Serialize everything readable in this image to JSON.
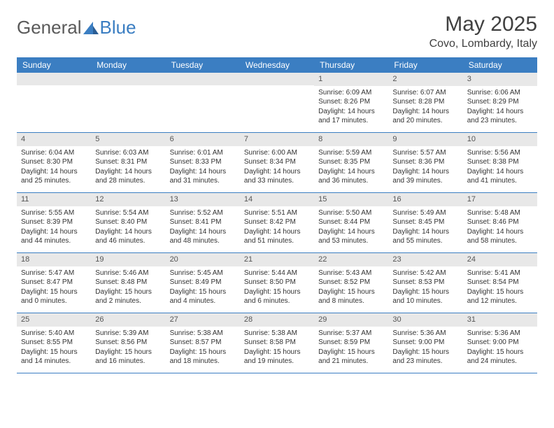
{
  "brand": {
    "name_part1": "General",
    "name_part2": "Blue"
  },
  "title": "May 2025",
  "location": "Covo, Lombardy, Italy",
  "colors": {
    "header_bg": "#3b7ec2",
    "header_text": "#ffffff",
    "daynum_bg": "#e8e8e8",
    "body_text": "#333333",
    "title_text": "#404040",
    "grid_border": "#3b7ec2"
  },
  "fonts": {
    "title_size": 30,
    "location_size": 16,
    "weekday_size": 12,
    "cell_size": 10
  },
  "weekdays": [
    "Sunday",
    "Monday",
    "Tuesday",
    "Wednesday",
    "Thursday",
    "Friday",
    "Saturday"
  ],
  "layout": {
    "columns": 7,
    "rows": 5,
    "leading_blanks": 4
  },
  "days": [
    {
      "n": "1",
      "sunrise": "Sunrise: 6:09 AM",
      "sunset": "Sunset: 8:26 PM",
      "daylight": "Daylight: 14 hours and 17 minutes."
    },
    {
      "n": "2",
      "sunrise": "Sunrise: 6:07 AM",
      "sunset": "Sunset: 8:28 PM",
      "daylight": "Daylight: 14 hours and 20 minutes."
    },
    {
      "n": "3",
      "sunrise": "Sunrise: 6:06 AM",
      "sunset": "Sunset: 8:29 PM",
      "daylight": "Daylight: 14 hours and 23 minutes."
    },
    {
      "n": "4",
      "sunrise": "Sunrise: 6:04 AM",
      "sunset": "Sunset: 8:30 PM",
      "daylight": "Daylight: 14 hours and 25 minutes."
    },
    {
      "n": "5",
      "sunrise": "Sunrise: 6:03 AM",
      "sunset": "Sunset: 8:31 PM",
      "daylight": "Daylight: 14 hours and 28 minutes."
    },
    {
      "n": "6",
      "sunrise": "Sunrise: 6:01 AM",
      "sunset": "Sunset: 8:33 PM",
      "daylight": "Daylight: 14 hours and 31 minutes."
    },
    {
      "n": "7",
      "sunrise": "Sunrise: 6:00 AM",
      "sunset": "Sunset: 8:34 PM",
      "daylight": "Daylight: 14 hours and 33 minutes."
    },
    {
      "n": "8",
      "sunrise": "Sunrise: 5:59 AM",
      "sunset": "Sunset: 8:35 PM",
      "daylight": "Daylight: 14 hours and 36 minutes."
    },
    {
      "n": "9",
      "sunrise": "Sunrise: 5:57 AM",
      "sunset": "Sunset: 8:36 PM",
      "daylight": "Daylight: 14 hours and 39 minutes."
    },
    {
      "n": "10",
      "sunrise": "Sunrise: 5:56 AM",
      "sunset": "Sunset: 8:38 PM",
      "daylight": "Daylight: 14 hours and 41 minutes."
    },
    {
      "n": "11",
      "sunrise": "Sunrise: 5:55 AM",
      "sunset": "Sunset: 8:39 PM",
      "daylight": "Daylight: 14 hours and 44 minutes."
    },
    {
      "n": "12",
      "sunrise": "Sunrise: 5:54 AM",
      "sunset": "Sunset: 8:40 PM",
      "daylight": "Daylight: 14 hours and 46 minutes."
    },
    {
      "n": "13",
      "sunrise": "Sunrise: 5:52 AM",
      "sunset": "Sunset: 8:41 PM",
      "daylight": "Daylight: 14 hours and 48 minutes."
    },
    {
      "n": "14",
      "sunrise": "Sunrise: 5:51 AM",
      "sunset": "Sunset: 8:42 PM",
      "daylight": "Daylight: 14 hours and 51 minutes."
    },
    {
      "n": "15",
      "sunrise": "Sunrise: 5:50 AM",
      "sunset": "Sunset: 8:44 PM",
      "daylight": "Daylight: 14 hours and 53 minutes."
    },
    {
      "n": "16",
      "sunrise": "Sunrise: 5:49 AM",
      "sunset": "Sunset: 8:45 PM",
      "daylight": "Daylight: 14 hours and 55 minutes."
    },
    {
      "n": "17",
      "sunrise": "Sunrise: 5:48 AM",
      "sunset": "Sunset: 8:46 PM",
      "daylight": "Daylight: 14 hours and 58 minutes."
    },
    {
      "n": "18",
      "sunrise": "Sunrise: 5:47 AM",
      "sunset": "Sunset: 8:47 PM",
      "daylight": "Daylight: 15 hours and 0 minutes."
    },
    {
      "n": "19",
      "sunrise": "Sunrise: 5:46 AM",
      "sunset": "Sunset: 8:48 PM",
      "daylight": "Daylight: 15 hours and 2 minutes."
    },
    {
      "n": "20",
      "sunrise": "Sunrise: 5:45 AM",
      "sunset": "Sunset: 8:49 PM",
      "daylight": "Daylight: 15 hours and 4 minutes."
    },
    {
      "n": "21",
      "sunrise": "Sunrise: 5:44 AM",
      "sunset": "Sunset: 8:50 PM",
      "daylight": "Daylight: 15 hours and 6 minutes."
    },
    {
      "n": "22",
      "sunrise": "Sunrise: 5:43 AM",
      "sunset": "Sunset: 8:52 PM",
      "daylight": "Daylight: 15 hours and 8 minutes."
    },
    {
      "n": "23",
      "sunrise": "Sunrise: 5:42 AM",
      "sunset": "Sunset: 8:53 PM",
      "daylight": "Daylight: 15 hours and 10 minutes."
    },
    {
      "n": "24",
      "sunrise": "Sunrise: 5:41 AM",
      "sunset": "Sunset: 8:54 PM",
      "daylight": "Daylight: 15 hours and 12 minutes."
    },
    {
      "n": "25",
      "sunrise": "Sunrise: 5:40 AM",
      "sunset": "Sunset: 8:55 PM",
      "daylight": "Daylight: 15 hours and 14 minutes."
    },
    {
      "n": "26",
      "sunrise": "Sunrise: 5:39 AM",
      "sunset": "Sunset: 8:56 PM",
      "daylight": "Daylight: 15 hours and 16 minutes."
    },
    {
      "n": "27",
      "sunrise": "Sunrise: 5:38 AM",
      "sunset": "Sunset: 8:57 PM",
      "daylight": "Daylight: 15 hours and 18 minutes."
    },
    {
      "n": "28",
      "sunrise": "Sunrise: 5:38 AM",
      "sunset": "Sunset: 8:58 PM",
      "daylight": "Daylight: 15 hours and 19 minutes."
    },
    {
      "n": "29",
      "sunrise": "Sunrise: 5:37 AM",
      "sunset": "Sunset: 8:59 PM",
      "daylight": "Daylight: 15 hours and 21 minutes."
    },
    {
      "n": "30",
      "sunrise": "Sunrise: 5:36 AM",
      "sunset": "Sunset: 9:00 PM",
      "daylight": "Daylight: 15 hours and 23 minutes."
    },
    {
      "n": "31",
      "sunrise": "Sunrise: 5:36 AM",
      "sunset": "Sunset: 9:00 PM",
      "daylight": "Daylight: 15 hours and 24 minutes."
    }
  ]
}
